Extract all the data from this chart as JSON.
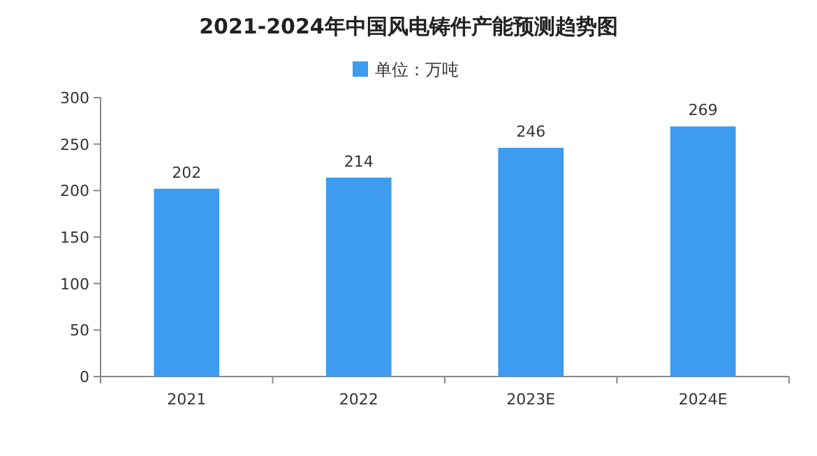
{
  "chart_data": {
    "type": "bar",
    "title": "2021-2024年中国风电铸件产能预测趋势图",
    "categories": [
      "2021",
      "2022",
      "2023E",
      "2024E"
    ],
    "series": [
      {
        "name": "单位：万吨",
        "color": "#3d9cf0",
        "values": [
          202,
          214,
          246,
          269
        ]
      }
    ],
    "ylim": [
      0,
      300
    ],
    "yticks": [
      0,
      50,
      100,
      150,
      200,
      250,
      300
    ],
    "data_labels": true,
    "legend": "top",
    "grid": false
  }
}
